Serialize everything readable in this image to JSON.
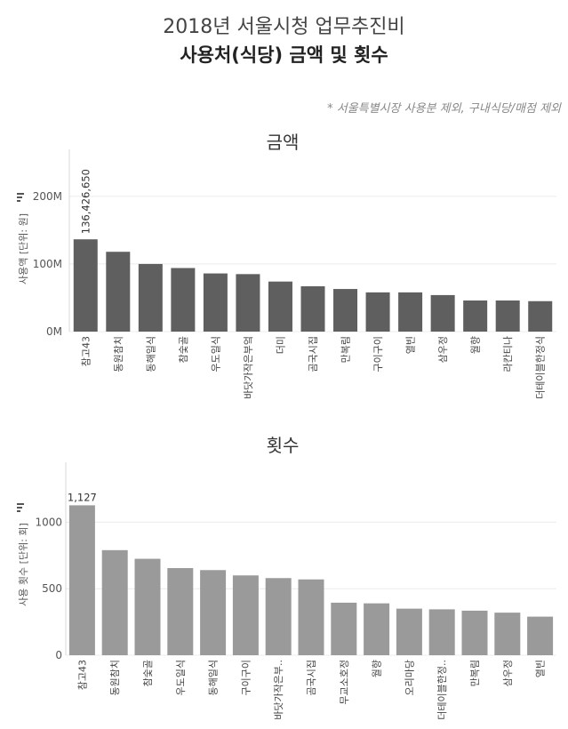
{
  "header": {
    "title_line1": "2018년 서울시청 업무추진비",
    "title_line2": "사용처(식당) 금액 및 횟수",
    "note": "* 서울특별시장 사용분 제외, 구내식당/매점 제외"
  },
  "colors": {
    "amount_bar": "#5f5f5f",
    "count_bar": "#9a9a9a"
  },
  "chart_data": [
    {
      "type": "bar",
      "title": "금액",
      "ylabel": "사용액 [단위: 원]",
      "ylim": [
        0,
        230000000
      ],
      "yticks": [
        0,
        100000000,
        200000000
      ],
      "ytick_labels": [
        "0M",
        "100M",
        "200M"
      ],
      "categories": [
        "참고43",
        "동원참치",
        "동해일식",
        "참숯골",
        "우도일식",
        "바닷가작은부엌",
        "더미",
        "곰국시집",
        "만복림",
        "구이구이",
        "열빈",
        "삼우정",
        "월향",
        "라칸티나",
        "더테이블한정식"
      ],
      "values": [
        136426650,
        118000000,
        100000000,
        94000000,
        86000000,
        85000000,
        74000000,
        67000000,
        63000000,
        58000000,
        58000000,
        54000000,
        46000000,
        46000000,
        45000000
      ],
      "data_labels": [
        {
          "index": 0,
          "text": "136,426,650"
        }
      ]
    },
    {
      "type": "bar",
      "title": "횟수",
      "ylabel": "사용 횟수 [단위: 회]",
      "ylim": [
        0,
        1250
      ],
      "yticks": [
        0,
        500,
        1000
      ],
      "ytick_labels": [
        "0",
        "500",
        "1000"
      ],
      "categories": [
        "참고43",
        "동원참치",
        "참숯골",
        "우도일식",
        "동해일식",
        "구이구이",
        "바닷가작은부..",
        "곰국시집",
        "무교소호정",
        "월향",
        "오리마당",
        "더테이블한정..",
        "만복림",
        "삼우정",
        "열빈"
      ],
      "values": [
        1127,
        790,
        725,
        655,
        640,
        600,
        580,
        570,
        395,
        390,
        350,
        345,
        335,
        320,
        290
      ],
      "data_labels": [
        {
          "index": 0,
          "text": "1,127"
        }
      ]
    }
  ]
}
